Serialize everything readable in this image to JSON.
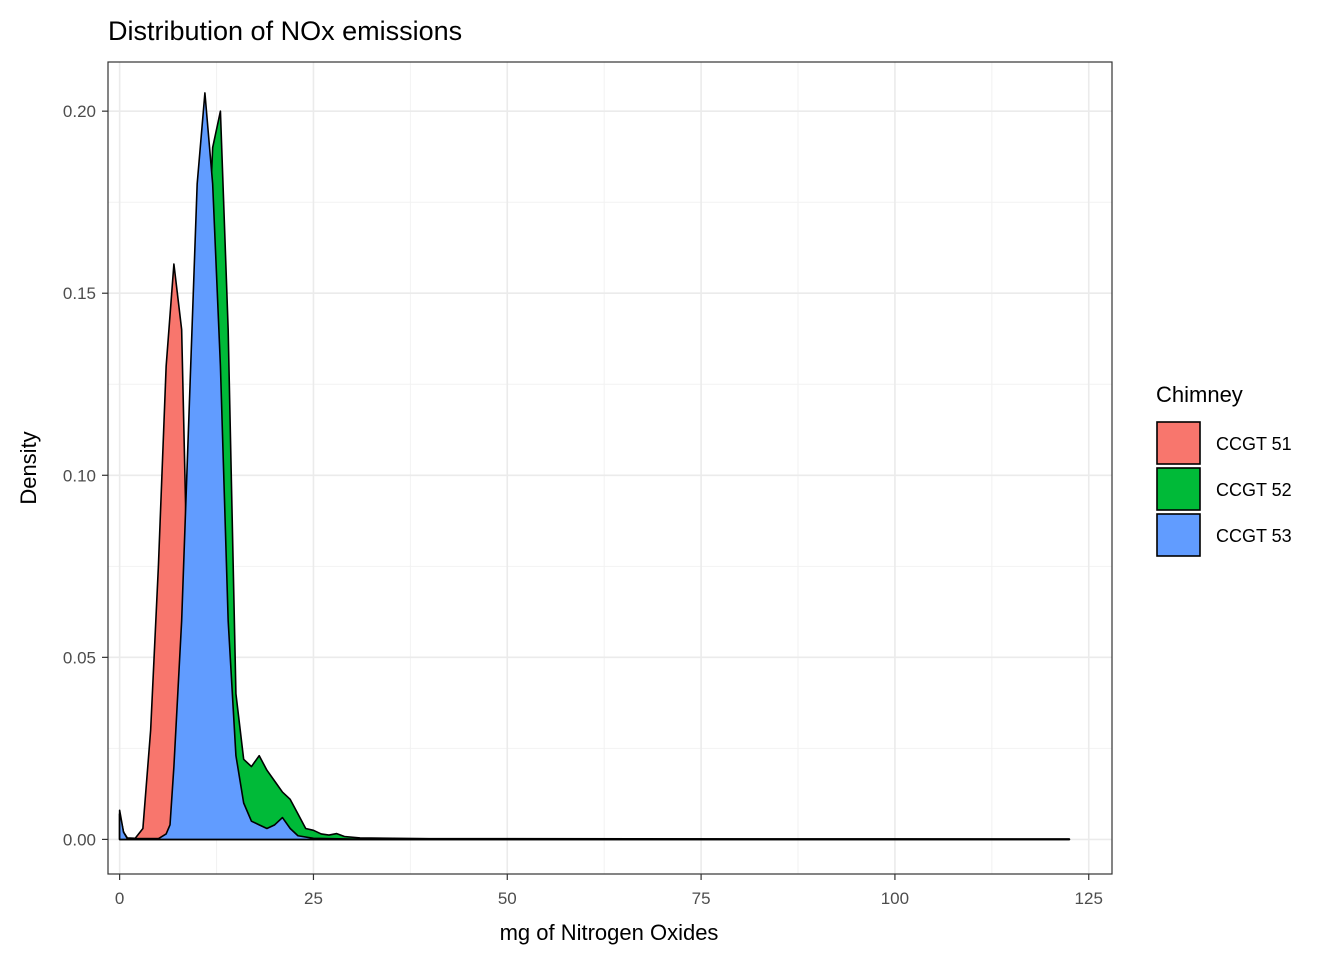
{
  "chart_data": {
    "type": "area",
    "title": "Distribution of NOx emissions",
    "xlabel": "mg of Nitrogen Oxides",
    "ylabel": "Density",
    "xlim": [
      -1.5,
      128
    ],
    "ylim": [
      -0.0095,
      0.2135
    ],
    "x_ticks": [
      0,
      25,
      50,
      75,
      100,
      125
    ],
    "x_tick_labels": [
      "0",
      "25",
      "50",
      "75",
      "100",
      "125"
    ],
    "y_ticks": [
      0.0,
      0.05,
      0.1,
      0.15,
      0.2
    ],
    "y_tick_labels": [
      "0.00",
      "0.05",
      "0.10",
      "0.15",
      "0.20"
    ],
    "grid": true,
    "legend": {
      "title": "Chimney",
      "position": "right"
    },
    "series": [
      {
        "name": "CCGT 51",
        "color": "#F8766D",
        "points": [
          [
            0,
            0.007
          ],
          [
            0.5,
            0.002
          ],
          [
            1,
            0.0004
          ],
          [
            2,
            0.0003
          ],
          [
            3,
            0.003
          ],
          [
            4,
            0.03
          ],
          [
            5,
            0.075
          ],
          [
            6,
            0.13
          ],
          [
            7,
            0.158
          ],
          [
            8,
            0.14
          ],
          [
            9,
            0.045
          ],
          [
            10,
            0.006
          ],
          [
            11,
            0.001
          ],
          [
            13,
            0.0003
          ],
          [
            16,
            0.0002
          ],
          [
            20,
            0.0001
          ],
          [
            30,
            5e-05
          ],
          [
            122.5,
            5e-05
          ]
        ]
      },
      {
        "name": "CCGT 52",
        "color": "#00BA38",
        "points": [
          [
            0,
            0.007
          ],
          [
            0.5,
            0.002
          ],
          [
            1,
            0.0002
          ],
          [
            5,
            0.0002
          ],
          [
            7,
            0.0005
          ],
          [
            8,
            0.002
          ],
          [
            9,
            0.015
          ],
          [
            10,
            0.06
          ],
          [
            11,
            0.14
          ],
          [
            12,
            0.19
          ],
          [
            13,
            0.2
          ],
          [
            14,
            0.14
          ],
          [
            15,
            0.04
          ],
          [
            16,
            0.022
          ],
          [
            17,
            0.02
          ],
          [
            18,
            0.023
          ],
          [
            19,
            0.019
          ],
          [
            20,
            0.016
          ],
          [
            21,
            0.013
          ],
          [
            22,
            0.011
          ],
          [
            23,
            0.007
          ],
          [
            24,
            0.003
          ],
          [
            25,
            0.0025
          ],
          [
            26,
            0.0015
          ],
          [
            27,
            0.0012
          ],
          [
            28,
            0.0016
          ],
          [
            29,
            0.0008
          ],
          [
            31,
            0.0004
          ],
          [
            40,
            0.0002
          ],
          [
            122.5,
            0.0001
          ]
        ]
      },
      {
        "name": "CCGT 53",
        "color": "#619CFF",
        "points": [
          [
            0,
            0.008
          ],
          [
            0.5,
            0.002
          ],
          [
            1,
            0.0002
          ],
          [
            5,
            0.0002
          ],
          [
            6,
            0.0015
          ],
          [
            6.5,
            0.004
          ],
          [
            7,
            0.02
          ],
          [
            8,
            0.06
          ],
          [
            9,
            0.12
          ],
          [
            10,
            0.18
          ],
          [
            11,
            0.205
          ],
          [
            12,
            0.18
          ],
          [
            13,
            0.13
          ],
          [
            14,
            0.06
          ],
          [
            15,
            0.023
          ],
          [
            16,
            0.01
          ],
          [
            17,
            0.005
          ],
          [
            18,
            0.004
          ],
          [
            19,
            0.003
          ],
          [
            20,
            0.004
          ],
          [
            21,
            0.006
          ],
          [
            22,
            0.003
          ],
          [
            23,
            0.001
          ],
          [
            25,
            0.0003
          ],
          [
            30,
            0.0001
          ],
          [
            122.5,
            5e-05
          ]
        ]
      }
    ]
  }
}
